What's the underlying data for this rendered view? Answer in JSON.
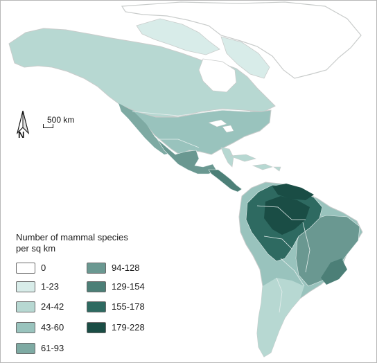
{
  "scale_bar": {
    "label": "500 km"
  },
  "north_arrow": {
    "label": "N"
  },
  "legend": {
    "title": "Number of mammal species per sq km",
    "items": [
      {
        "label": "0",
        "color": "#ffffff"
      },
      {
        "label": "1-23",
        "color": "#d8ece9"
      },
      {
        "label": "24-42",
        "color": "#b7d8d2"
      },
      {
        "label": "43-60",
        "color": "#99c3bd"
      },
      {
        "label": "61-93",
        "color": "#7eaaa3"
      },
      {
        "label": "94-128",
        "color": "#6a9891"
      },
      {
        "label": "129-154",
        "color": "#4c7f77"
      },
      {
        "label": "155-178",
        "color": "#2e6a61"
      },
      {
        "label": "179-228",
        "color": "#1a4d45"
      }
    ]
  },
  "colors": {
    "land_unsampled": "#c8cbcb",
    "border": "#e6efee"
  }
}
